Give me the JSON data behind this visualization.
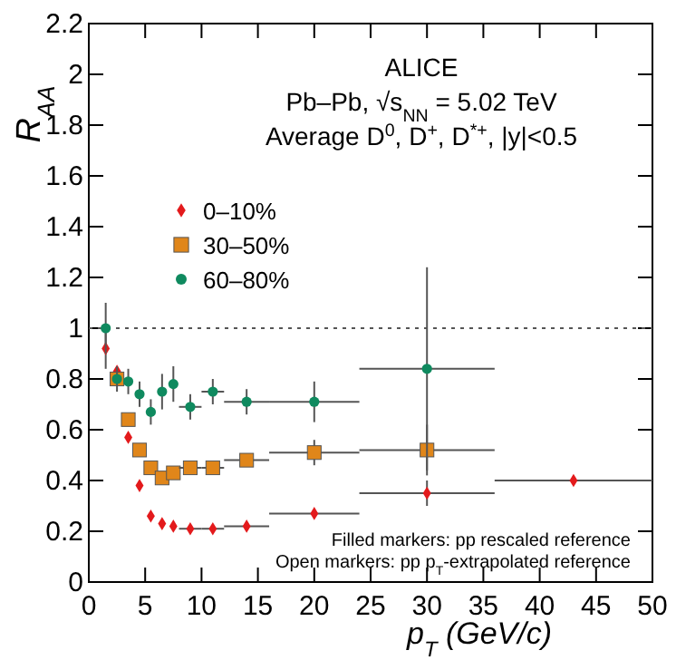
{
  "chart_data": {
    "type": "scatter",
    "title": "ALICE",
    "subtitle": "Pb–Pb, √s$_{NN}$ = 5.02 TeV",
    "xlabel": "p$_{T}$ (GeV/c)",
    "ylabel": "R$_{AA}$",
    "annotations": [
      "Average D$^{0}$, D$^{+}$, D$^{*+}$, |y|<0.5",
      "Filled markers: pp rescaled reference",
      "Open markers: pp p$_{T}$-extrapolated reference"
    ],
    "xlim": [
      0,
      50
    ],
    "xticks": [
      0,
      5,
      10,
      15,
      20,
      25,
      30,
      35,
      40,
      45,
      50
    ],
    "ylim": [
      0,
      2.2
    ],
    "yticks": [
      0,
      0.2,
      0.4,
      0.6,
      0.8,
      1,
      1.2,
      1.4,
      1.6,
      1.8,
      2,
      2.2
    ],
    "legend": "top left",
    "ref_lines": [
      {
        "axis": "y",
        "value": 1,
        "line_style": "dotted",
        "color": "#555555"
      }
    ],
    "series": [
      {
        "name": "0–10%",
        "color": "#e31a1c",
        "marker": "diamond",
        "x": [
          1.5,
          2.5,
          3.5,
          4.5,
          5.5,
          6.5,
          7.5,
          9,
          11,
          14,
          20,
          30
        ],
        "values": [
          0.92,
          0.83,
          0.57,
          0.38,
          0.26,
          0.23,
          0.22,
          0.21,
          0.21,
          0.22,
          0.27,
          0.35
        ],
        "errors": [
          0.08,
          null,
          null,
          null,
          null,
          null,
          null,
          null,
          null,
          null,
          null,
          0.05
        ],
        "xerrors": [
          null,
          null,
          null,
          null,
          null,
          null,
          null,
          1,
          1,
          2,
          4,
          6
        ]
      },
      {
        "name": "30–50%",
        "color": "#e0861a",
        "marker": "square",
        "x": [
          2.5,
          3.5,
          4.5,
          5.5,
          6.5,
          7.5,
          9,
          11,
          14,
          20,
          30
        ],
        "values": [
          0.8,
          0.64,
          0.52,
          0.45,
          0.41,
          0.43,
          0.45,
          0.45,
          0.48,
          0.51,
          0.52
        ],
        "errors": [
          null,
          null,
          null,
          null,
          null,
          null,
          null,
          null,
          null,
          0.05,
          0.1
        ],
        "xerrors": [
          null,
          null,
          null,
          null,
          null,
          null,
          1,
          1,
          2,
          4,
          6
        ]
      },
      {
        "name": "60–80%",
        "color": "#0f8a5f",
        "marker": "circle",
        "x": [
          1.5,
          2.5,
          3.5,
          4.5,
          5.5,
          6.5,
          7.5,
          9,
          11,
          14,
          20,
          30
        ],
        "values": [
          1.0,
          0.8,
          0.79,
          0.74,
          0.67,
          0.75,
          0.78,
          0.69,
          0.75,
          0.71,
          0.71,
          0.84
        ],
        "errors": [
          0.1,
          0.05,
          0.05,
          0.05,
          0.05,
          0.07,
          0.07,
          0.05,
          0.05,
          0.05,
          0.08,
          0.4
        ],
        "xerrors": [
          null,
          null,
          null,
          null,
          null,
          null,
          null,
          1,
          1,
          2,
          4,
          6
        ]
      },
      {
        "color": "#e31a1c",
        "marker": "diamond",
        "x": [
          43
        ],
        "values": [
          0.4
        ],
        "xerrors": [
          7
        ]
      }
    ]
  }
}
